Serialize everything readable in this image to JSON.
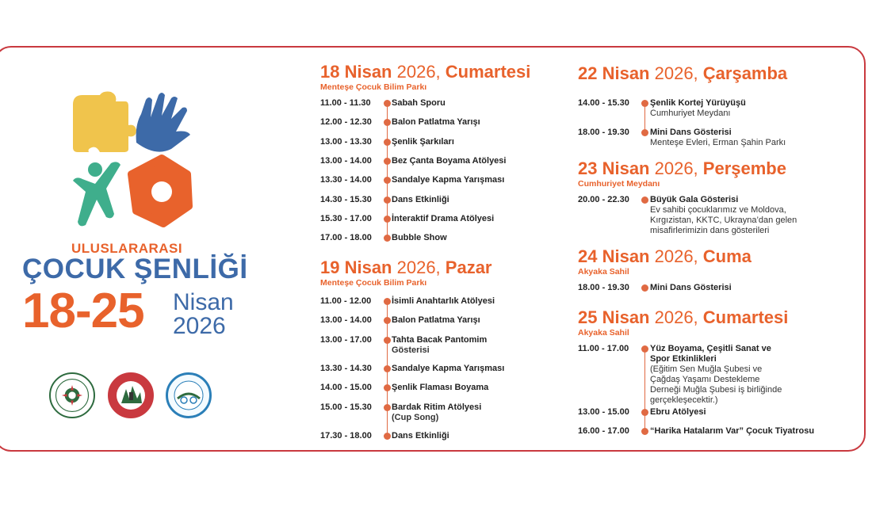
{
  "brand": {
    "subtitle": "ULUSLARARASI",
    "title": "ÇOCUK ŞENLİĞİ",
    "dates": "18-25",
    "month": "Nisan",
    "year": "2026"
  },
  "colors": {
    "orange": "#e8622c",
    "blue": "#3d6aa8",
    "yellow": "#f0c44c",
    "green": "#3fae8c",
    "red_border": "#c9393f"
  },
  "seals": [
    "mugla-buyuksehir-seal",
    "mentese-belediye-seal",
    "ula-belediye-seal"
  ],
  "days": [
    {
      "date": "18 Nisan",
      "year": "2026,",
      "dow": "Cumartesi",
      "location": "Menteşe Çocuk Bilim Parkı",
      "events": [
        {
          "time": "11.00 - 11.30",
          "name": "Sabah Sporu"
        },
        {
          "time": "12.00 - 12.30",
          "name": "Balon Patlatma Yarışı"
        },
        {
          "time": "13.00 - 13.30",
          "name": "Şenlik Şarkıları"
        },
        {
          "time": "13.00 - 14.00",
          "name": "Bez Çanta Boyama Atölyesi"
        },
        {
          "time": "13.30 - 14.00",
          "name": "Sandalye Kapma Yarışması"
        },
        {
          "time": "14.30 - 15.30",
          "name": "Dans Etkinliği"
        },
        {
          "time": "15.30 - 17.00",
          "name": "İnteraktif Drama Atölyesi"
        },
        {
          "time": "17.00 - 18.00",
          "name": "Bubble  Show"
        }
      ]
    },
    {
      "date": "19 Nisan",
      "year": "2026,",
      "dow": "Pazar",
      "location": "Menteşe Çocuk Bilim Parkı",
      "events": [
        {
          "time": "11.00 - 12.00",
          "name": "İsimli Anahtarlık Atölyesi"
        },
        {
          "time": "13.00 - 14.00",
          "name": "Balon Patlatma Yarışı"
        },
        {
          "time": "13.00 - 17.00",
          "name": "Tahta Bacak Pantomim",
          "sub": "Gösterisi"
        },
        {
          "time": "13.30 - 14.30",
          "name": "Sandalye Kapma Yarışması"
        },
        {
          "time": "14.00 - 15.00",
          "name": "Şenlik Flaması Boyama"
        },
        {
          "time": "15.00 - 15.30",
          "name": "Bardak Ritim Atölyesi",
          "sub": "(Cup Song)"
        },
        {
          "time": "17.30 - 18.00",
          "name": "Dans Etkinliği"
        }
      ]
    },
    {
      "date": "22 Nisan",
      "year": "2026,",
      "dow": "Çarşamba",
      "location": "",
      "events": [
        {
          "time": "14.00 - 15.30",
          "name": "Şenlik Kortej Yürüyüşü",
          "sub": "Cumhuriyet Meydanı"
        },
        {
          "time": "18.00 - 19.30",
          "name": "Mini Dans Gösterisi",
          "sub": "Menteşe Evleri, Erman Şahin Parkı"
        }
      ]
    },
    {
      "date": "23 Nisan",
      "year": "2026,",
      "dow": "Perşembe",
      "location": "Cumhuriyet Meydanı",
      "events": [
        {
          "time": "20.00 - 22.30",
          "name": "Büyük Gala Gösterisi",
          "sub": "Ev sahibi çocuklarımız ve Moldova,",
          "sub2": "Kırgızistan, KKTC, Ukrayna’dan gelen",
          "sub3": "misafirlerimizin dans gösterileri"
        }
      ]
    },
    {
      "date": "24 Nisan",
      "year": "2026,",
      "dow": "Cuma",
      "location": "Akyaka Sahil",
      "events": [
        {
          "time": "18.00 - 19.30",
          "name": "Mini Dans Gösterisi"
        }
      ]
    },
    {
      "date": "25 Nisan",
      "year": "2026,",
      "dow": "Cumartesi",
      "location": "Akyaka Sahil",
      "events": [
        {
          "time": "11.00 - 17.00",
          "name": "Yüz Boyama, Çeşitli Sanat ve",
          "name2": "Spor Etkinlikleri",
          "sub": "(Eğitim Sen Muğla Şubesi ve",
          "sub2": "Çağdaş Yaşamı Destekleme",
          "sub3": "Derneği Muğla Şubesi iş birliğinde",
          "sub4": "gerçekleşecektir.)"
        },
        {
          "time": "13.00 - 15.00",
          "name": "Ebru Atölyesi"
        },
        {
          "time": "16.00 - 17.00",
          "name": "“Harika Hatalarım Var” Çocuk Tiyatrosu"
        }
      ]
    }
  ]
}
